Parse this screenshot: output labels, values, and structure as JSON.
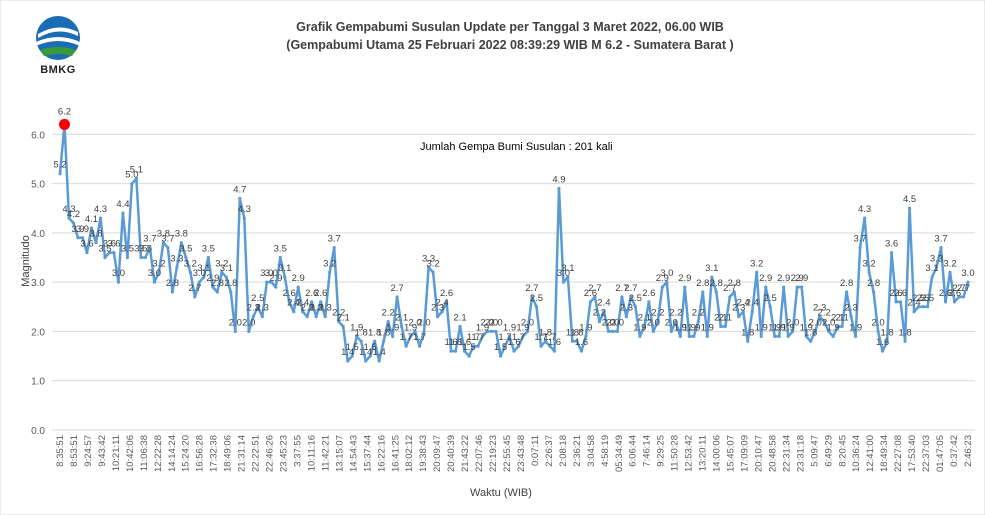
{
  "logo": {
    "text": "BMKG"
  },
  "chart_data": {
    "type": "line",
    "title": "Grafik Gempabumi Susulan  Update per Tanggal 3 Maret 2022, 06.00 WIB",
    "subtitle": "(Gempabumi Utama 25 Februari 2022 08:39:29 WIB M 6.2 - Sumatera Barat )",
    "annotation": "Jumlah Gempa Bumi Susulan : 201 kali",
    "xlabel": "Waktu (WIB)",
    "ylabel": "Magnitudo",
    "ylim": [
      0,
      7
    ],
    "yticks": [
      "0.0",
      "1.0",
      "2.0",
      "3.0",
      "4.0",
      "5.0",
      "6.0"
    ],
    "grid": true,
    "line_color": "#5b9bd5",
    "mainshock_color": "#ff0000",
    "mainshock_index": 1,
    "x_tick_labels": [
      "8:35:51",
      "8:53:51",
      "9:24:57",
      "9:43:42",
      "10:21:11",
      "10:42:06",
      "11:06:38",
      "12:22:28",
      "14:14:24",
      "15:24:20",
      "16:56:28",
      "17:32:38",
      "18:49:06",
      "21:31:14",
      "22:22:51",
      "22:46:26",
      "23:45:23",
      "3:37:55",
      "10:11:16",
      "11:42:21",
      "13:15:07",
      "14:54:43",
      "15:37:44",
      "16:22:16",
      "16:41:25",
      "18:02:12",
      "19:38:43",
      "20:09:47",
      "20:40:39",
      "21:43:22",
      "22:07:46",
      "22:19:23",
      "22:55:45",
      "23:43:48",
      "0:07:11",
      "2:26:37",
      "2:08:18",
      "2:36:21",
      "3:04:58",
      "4:58:19",
      "05:34:49",
      "6:06:44",
      "7:46:14",
      "9:29:25",
      "11:50:28",
      "12:53:42",
      "13:20:11",
      "14:00:06",
      "15:45:07",
      "17:09:09",
      "20:10:47",
      "20:48:58",
      "22:31:34",
      "23:31:18",
      "5:09:47",
      "6:49:29",
      "8:20:45",
      "10:36:24",
      "12:41:00",
      "18:49:34",
      "22:27:08",
      "17:53:40",
      "22:37:03",
      "01:47:05",
      "0:37:42",
      "2:46:23"
    ],
    "values": [
      5.2,
      6.2,
      4.3,
      4.2,
      3.9,
      3.9,
      3.6,
      4.1,
      3.8,
      4.3,
      3.5,
      3.6,
      3.6,
      3.0,
      4.4,
      3.5,
      5.0,
      5.1,
      3.5,
      3.5,
      3.7,
      3.0,
      3.2,
      3.8,
      3.7,
      2.8,
      3.3,
      3.8,
      3.5,
      3.2,
      2.7,
      3.0,
      3.1,
      3.5,
      2.9,
      2.8,
      3.2,
      3.1,
      2.8,
      2.0,
      4.7,
      4.3,
      2.0,
      2.3,
      2.5,
      2.3,
      3.0,
      3.0,
      2.9,
      3.5,
      3.1,
      2.6,
      2.4,
      2.9,
      2.4,
      2.3,
      2.6,
      2.3,
      2.6,
      2.3,
      3.2,
      3.7,
      2.2,
      2.1,
      1.4,
      1.5,
      1.9,
      1.8,
      1.4,
      1.5,
      1.8,
      1.4,
      1.8,
      2.2,
      1.9,
      2.7,
      2.1,
      1.7,
      1.9,
      2.0,
      1.7,
      2.0,
      3.3,
      3.2,
      2.3,
      2.4,
      2.6,
      1.6,
      1.6,
      2.1,
      1.6,
      1.5,
      1.7,
      1.7,
      1.9,
      2.0,
      2.0,
      2.0,
      1.5,
      1.7,
      1.9,
      1.6,
      1.7,
      1.9,
      2.0,
      2.7,
      2.5,
      1.7,
      1.8,
      1.7,
      1.6,
      4.9,
      3.0,
      3.1,
      1.8,
      1.8,
      1.6,
      1.9,
      2.6,
      2.7,
      2.2,
      2.4,
      2.0,
      2.0,
      2.0,
      2.7,
      2.3,
      2.7,
      2.5,
      1.9,
      2.1,
      2.6,
      2.0,
      2.2,
      2.9,
      3.0,
      2.0,
      2.2,
      1.9,
      2.9,
      1.9,
      1.9,
      2.2,
      2.8,
      1.9,
      3.1,
      2.8,
      2.1,
      2.1,
      2.7,
      2.8,
      2.3,
      2.4,
      1.8,
      2.4,
      3.2,
      1.9,
      2.9,
      2.5,
      1.9,
      1.9,
      2.9,
      1.9,
      2.0,
      2.9,
      2.9,
      1.9,
      1.8,
      2.0,
      2.3,
      2.2,
      2.0,
      1.9,
      2.1,
      2.1,
      2.8,
      2.3,
      1.9,
      3.7,
      4.3,
      3.2,
      2.8,
      2.0,
      1.6,
      1.8,
      3.6,
      2.6,
      2.6,
      1.8,
      4.5,
      2.4,
      2.5,
      2.5,
      2.5,
      3.1,
      3.3,
      3.7,
      2.6,
      3.2,
      2.6,
      2.7,
      2.7,
      3.0
    ]
  }
}
